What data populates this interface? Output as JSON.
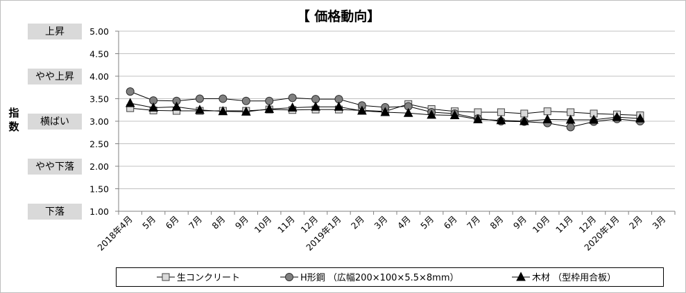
{
  "chart_data": {
    "type": "line",
    "title": "【 価格動向】",
    "ylabel": "指数",
    "ylim": [
      1.0,
      5.0
    ],
    "ytick_step": 0.5,
    "y_ticks": [
      "5.00",
      "4.50",
      "4.00",
      "3.50",
      "3.00",
      "2.50",
      "2.00",
      "1.50",
      "1.00"
    ],
    "level_labels": [
      {
        "label": "上昇",
        "value": 5.0
      },
      {
        "label": "やや上昇",
        "value": 4.0
      },
      {
        "label": "横ばい",
        "value": 3.0
      },
      {
        "label": "やや下落",
        "value": 2.0
      },
      {
        "label": "下落",
        "value": 1.0
      }
    ],
    "categories": [
      "2018年4月",
      "5月",
      "6月",
      "7月",
      "8月",
      "9月",
      "10月",
      "11月",
      "12月",
      "2019年1月",
      "2月",
      "3月",
      "4月",
      "5月",
      "6月",
      "7月",
      "8月",
      "9月",
      "10月",
      "11月",
      "12月",
      "2020年1月",
      "2月",
      "3月"
    ],
    "grid": "horizontal",
    "legend_position": "bottom",
    "series": [
      {
        "name": "生コンクリート",
        "marker": "square",
        "color": "#d9d9d9",
        "values": [
          3.29,
          3.24,
          3.23,
          3.23,
          3.23,
          3.23,
          3.26,
          3.25,
          3.26,
          3.26,
          3.24,
          3.22,
          3.38,
          3.27,
          3.22,
          3.2,
          3.2,
          3.17,
          3.22,
          3.2,
          3.17,
          3.15,
          3.13,
          null
        ]
      },
      {
        "name": "H形鋼 （広幅200×100×5.5×8mm）",
        "marker": "circle",
        "color": "#808080",
        "values": [
          3.66,
          3.46,
          3.45,
          3.5,
          3.5,
          3.45,
          3.45,
          3.52,
          3.49,
          3.49,
          3.35,
          3.31,
          3.33,
          3.2,
          3.17,
          3.06,
          3.0,
          2.99,
          2.96,
          2.87,
          2.99,
          3.05,
          3.0,
          null
        ]
      },
      {
        "name": "木材 （型枠用合板）",
        "marker": "triangle",
        "color": "#000000",
        "values": [
          3.4,
          3.3,
          3.32,
          3.25,
          3.22,
          3.21,
          3.27,
          3.3,
          3.32,
          3.32,
          3.23,
          3.2,
          3.18,
          3.14,
          3.13,
          3.04,
          3.02,
          3.0,
          3.04,
          3.03,
          3.03,
          3.09,
          3.06,
          null
        ]
      }
    ]
  }
}
